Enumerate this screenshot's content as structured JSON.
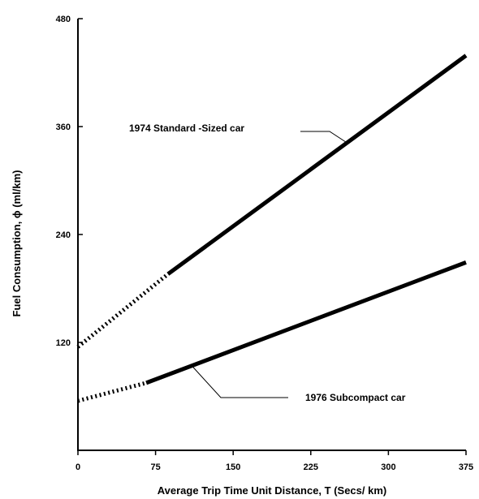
{
  "chart_data": {
    "type": "line",
    "xlabel": "Average Trip Time Unit Distance, T (Secs/ km)",
    "ylabel": "Fuel Consumption, ϕ (ml/km)",
    "xlim": [
      0,
      375
    ],
    "ylim": [
      0,
      480
    ],
    "x_ticks": [
      0,
      75,
      150,
      225,
      300,
      375
    ],
    "y_ticks": [
      120,
      240,
      360,
      480
    ],
    "x_tick_labels": [
      "0",
      "75",
      "150",
      "225",
      "300",
      "375"
    ],
    "y_tick_labels": [
      "120",
      "240",
      "360",
      "480"
    ],
    "grid": false,
    "series": [
      {
        "name": "1974 Standard -Sized car",
        "color": "#000000",
        "dotted_extrapolation": {
          "x": [
            0,
            87
          ],
          "y": [
            115,
            196
          ]
        },
        "solid": {
          "x": [
            87,
            375
          ],
          "y": [
            196,
            439
          ]
        }
      },
      {
        "name": "1976 Subcompact car",
        "color": "#000000",
        "dotted_extrapolation": {
          "x": [
            0,
            66
          ],
          "y": [
            55,
            75
          ]
        },
        "solid": {
          "x": [
            66,
            375
          ],
          "y": [
            75,
            209
          ]
        }
      }
    ],
    "annotations": [
      {
        "text": "1974 Standard -Sized car",
        "points_to_series": 0,
        "leader_at_x": 260
      },
      {
        "text": "1976 Subcompact car",
        "points_to_series": 1,
        "leader_at_x": 110
      }
    ]
  }
}
